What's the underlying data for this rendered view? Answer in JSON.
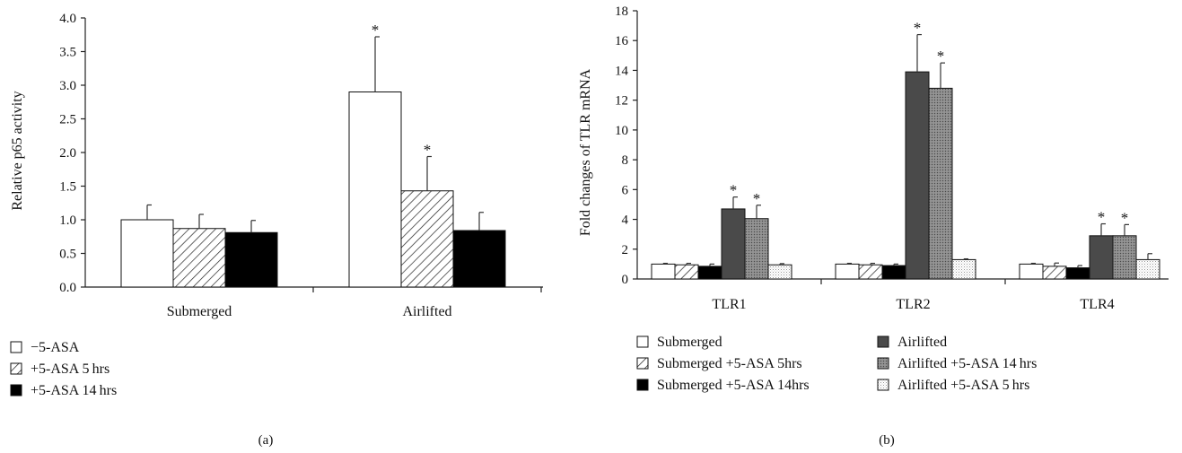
{
  "chart_data": [
    {
      "type": "bar",
      "panel_label": "(a)",
      "ylabel": "Relative p65 activity",
      "xlabel": "",
      "ylim": [
        0,
        4.0
      ],
      "yticks": [
        "0.0",
        "0.5",
        "1.0",
        "1.5",
        "2.0",
        "2.5",
        "3.0",
        "3.5",
        "4.0"
      ],
      "categories": [
        "Submerged",
        "Airlifted"
      ],
      "series": [
        {
          "name": "−5-ASA",
          "fill": "white",
          "values": [
            1.0,
            2.9
          ],
          "errors": [
            0.22,
            0.82
          ],
          "sig": [
            false,
            true
          ]
        },
        {
          "name": "+5-ASA 5 hrs",
          "fill": "hatch",
          "values": [
            0.87,
            1.43
          ],
          "errors": [
            0.21,
            0.51
          ],
          "sig": [
            false,
            true
          ]
        },
        {
          "name": "+5-ASA 14 hrs",
          "fill": "black",
          "values": [
            0.81,
            0.84
          ],
          "errors": [
            0.18,
            0.27
          ],
          "sig": [
            false,
            false
          ]
        }
      ],
      "annotation": "*"
    },
    {
      "type": "bar",
      "panel_label": "(b)",
      "ylabel": "Fold changes of TLR mRNA",
      "xlabel": "",
      "ylim": [
        0,
        18
      ],
      "yticks": [
        "0",
        "2",
        "4",
        "6",
        "8",
        "10",
        "12",
        "14",
        "16",
        "18"
      ],
      "categories": [
        "TLR1",
        "TLR2",
        "TLR4"
      ],
      "series": [
        {
          "name": "Submerged",
          "fill": "white",
          "values": [
            1.0,
            1.0,
            1.0
          ],
          "errors": [
            0.05,
            0.05,
            0.05
          ],
          "sig": [
            false,
            false,
            false
          ]
        },
        {
          "name": "Submerged +5-ASA 5hrs",
          "fill": "hatch",
          "values": [
            0.95,
            0.95,
            0.85
          ],
          "errors": [
            0.1,
            0.1,
            0.22
          ],
          "sig": [
            false,
            false,
            false
          ]
        },
        {
          "name": "Submerged +5-ASA 14hrs",
          "fill": "black",
          "values": [
            0.85,
            0.9,
            0.75
          ],
          "errors": [
            0.15,
            0.1,
            0.15
          ],
          "sig": [
            false,
            false,
            false
          ]
        },
        {
          "name": "Airlifted",
          "fill": "darkgray",
          "values": [
            4.7,
            13.9,
            2.9
          ],
          "errors": [
            0.8,
            2.5,
            0.8
          ],
          "sig": [
            true,
            true,
            true
          ]
        },
        {
          "name": "Airlifted +5-ASA 14 hrs",
          "fill": "stipple",
          "values": [
            4.05,
            12.8,
            2.9
          ],
          "errors": [
            0.9,
            1.7,
            0.75
          ],
          "sig": [
            true,
            true,
            true
          ]
        },
        {
          "name": "Airlifted +5-ASA 5 hrs",
          "fill": "lightdots",
          "values": [
            0.95,
            1.3,
            1.3
          ],
          "errors": [
            0.08,
            0.05,
            0.4
          ],
          "sig": [
            false,
            false,
            false
          ]
        }
      ],
      "annotation": "*"
    }
  ]
}
